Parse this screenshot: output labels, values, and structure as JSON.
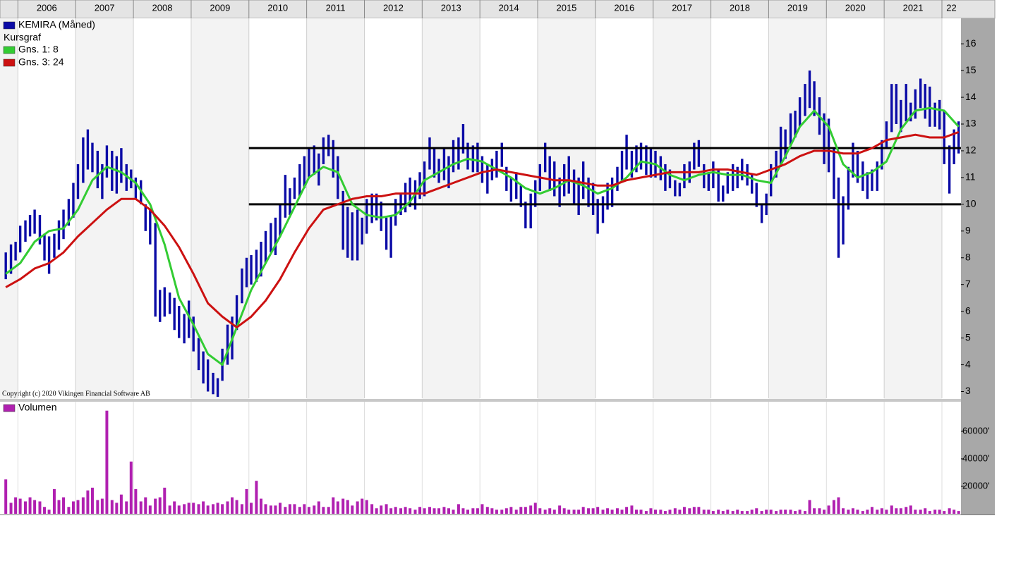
{
  "chart_data": {
    "type": "ohlc",
    "legend_note": "Kursgraf",
    "copyright": "Copyright (c) 2020 Vikingen Financial Software AB",
    "xlim": [
      2005.69,
      2022.33
    ],
    "xticks": [
      2006,
      2007,
      2008,
      2009,
      2010,
      2011,
      2012,
      2013,
      2014,
      2015,
      2016,
      2017,
      2018,
      2019,
      2020,
      2021,
      {
        "value": 2022,
        "label": "22"
      }
    ],
    "ylim": [
      2.75,
      16.9
    ],
    "yticks": [
      3,
      4,
      5,
      6,
      7,
      8,
      9,
      10,
      11,
      12,
      13,
      14,
      15,
      16
    ],
    "y2lim": [
      0,
      81500
    ],
    "y2ticks": [
      {
        "value": 20000,
        "label": "20000'"
      },
      {
        "value": 40000,
        "label": "40000'"
      },
      {
        "value": 60000,
        "label": "60000'"
      }
    ],
    "grid": true,
    "hlines": [
      {
        "value": 12.1,
        "from": 2010.0
      },
      {
        "value": 10.0,
        "from": 2010.0
      }
    ],
    "x": [
      2005.79,
      2005.88,
      2005.96,
      2006.04,
      2006.13,
      2006.21,
      2006.29,
      2006.38,
      2006.46,
      2006.54,
      2006.63,
      2006.71,
      2006.79,
      2006.88,
      2006.96,
      2007.04,
      2007.13,
      2007.21,
      2007.29,
      2007.38,
      2007.46,
      2007.54,
      2007.63,
      2007.71,
      2007.79,
      2007.88,
      2007.96,
      2008.04,
      2008.13,
      2008.21,
      2008.29,
      2008.38,
      2008.46,
      2008.54,
      2008.63,
      2008.71,
      2008.79,
      2008.88,
      2008.96,
      2009.04,
      2009.13,
      2009.21,
      2009.29,
      2009.38,
      2009.46,
      2009.54,
      2009.63,
      2009.71,
      2009.79,
      2009.88,
      2009.96,
      2010.04,
      2010.13,
      2010.21,
      2010.29,
      2010.38,
      2010.46,
      2010.54,
      2010.63,
      2010.71,
      2010.79,
      2010.88,
      2010.96,
      2011.04,
      2011.13,
      2011.21,
      2011.29,
      2011.38,
      2011.46,
      2011.54,
      2011.63,
      2011.71,
      2011.79,
      2011.88,
      2011.96,
      2012.04,
      2012.13,
      2012.21,
      2012.29,
      2012.38,
      2012.46,
      2012.54,
      2012.63,
      2012.71,
      2012.79,
      2012.88,
      2012.96,
      2013.04,
      2013.13,
      2013.21,
      2013.29,
      2013.38,
      2013.46,
      2013.54,
      2013.63,
      2013.71,
      2013.79,
      2013.88,
      2013.96,
      2014.04,
      2014.13,
      2014.21,
      2014.29,
      2014.38,
      2014.46,
      2014.54,
      2014.63,
      2014.71,
      2014.79,
      2014.88,
      2014.96,
      2015.04,
      2015.13,
      2015.21,
      2015.29,
      2015.38,
      2015.46,
      2015.54,
      2015.63,
      2015.71,
      2015.79,
      2015.88,
      2015.96,
      2016.04,
      2016.13,
      2016.21,
      2016.29,
      2016.38,
      2016.46,
      2016.54,
      2016.63,
      2016.71,
      2016.79,
      2016.88,
      2016.96,
      2017.04,
      2017.13,
      2017.21,
      2017.29,
      2017.38,
      2017.46,
      2017.54,
      2017.63,
      2017.71,
      2017.79,
      2017.88,
      2017.96,
      2018.04,
      2018.13,
      2018.21,
      2018.29,
      2018.38,
      2018.46,
      2018.54,
      2018.63,
      2018.71,
      2018.79,
      2018.88,
      2018.96,
      2019.04,
      2019.13,
      2019.21,
      2019.29,
      2019.38,
      2019.46,
      2019.54,
      2019.63,
      2019.71,
      2019.79,
      2019.88,
      2019.96,
      2020.04,
      2020.13,
      2020.21,
      2020.29,
      2020.38,
      2020.46,
      2020.54,
      2020.63,
      2020.71,
      2020.79,
      2020.88,
      2020.96,
      2021.04,
      2021.13,
      2021.21,
      2021.29,
      2021.38,
      2021.46,
      2021.54,
      2021.63,
      2021.71,
      2021.79,
      2021.88,
      2021.96,
      2022.04,
      2022.13,
      2022.21,
      2022.29
    ],
    "series": [
      {
        "name": "KEMIRA (Måned)",
        "color": "#0b0ba6",
        "high": [
          8.2,
          8.5,
          8.6,
          9.2,
          9.4,
          9.6,
          9.8,
          9.6,
          8.9,
          8.8,
          8.9,
          9.4,
          9.8,
          10.2,
          10.8,
          11.5,
          12.5,
          12.8,
          12.3,
          12.0,
          11.5,
          12.2,
          12.0,
          11.8,
          12.1,
          11.5,
          11.3,
          11.0,
          10.9,
          10.0,
          9.8,
          9.3,
          6.8,
          6.9,
          6.7,
          6.5,
          6.2,
          5.9,
          6.4,
          5.8,
          5.0,
          4.5,
          4.2,
          3.7,
          3.5,
          4.6,
          5.5,
          5.8,
          6.6,
          7.6,
          8.0,
          8.1,
          8.3,
          8.6,
          9.0,
          9.3,
          9.5,
          10.0,
          11.1,
          10.6,
          11.0,
          11.5,
          11.8,
          12.1,
          12.2,
          11.9,
          12.5,
          12.6,
          12.4,
          11.8,
          10.5,
          9.9,
          9.7,
          9.8,
          9.5,
          10.2,
          10.4,
          10.4,
          10.1,
          9.5,
          9.6,
          10.2,
          10.4,
          10.8,
          11.0,
          10.9,
          11.2,
          11.6,
          12.5,
          12.1,
          11.7,
          12.1,
          11.8,
          12.4,
          12.5,
          13.0,
          12.3,
          12.2,
          12.3,
          11.8,
          11.5,
          11.7,
          12.0,
          12.3,
          11.4,
          11.0,
          11.2,
          10.7,
          10.1,
          10.4,
          10.9,
          11.5,
          12.3,
          11.8,
          11.6,
          11.0,
          11.5,
          11.8,
          11.3,
          11.0,
          11.6,
          11.0,
          10.8,
          10.2,
          10.3,
          10.8,
          11.0,
          11.4,
          12.0,
          12.6,
          12.0,
          12.2,
          12.3,
          12.2,
          12.1,
          12.0,
          11.8,
          11.5,
          11.3,
          10.9,
          10.8,
          11.5,
          11.6,
          12.3,
          12.4,
          11.5,
          11.2,
          11.6,
          11.3,
          10.7,
          11.2,
          11.5,
          11.4,
          11.7,
          11.5,
          11.1,
          10.8,
          10.0,
          10.4,
          11.5,
          12.0,
          12.9,
          12.8,
          13.4,
          13.5,
          14.0,
          14.5,
          15.0,
          14.6,
          14.0,
          13.4,
          13.2,
          12.1,
          11.0,
          10.3,
          11.4,
          12.3,
          12.0,
          11.6,
          11.2,
          11.3,
          11.6,
          12.4,
          13.1,
          14.5,
          14.5,
          13.9,
          14.5,
          13.8,
          14.3,
          14.7,
          14.5,
          14.4,
          13.8,
          13.9,
          13.5,
          12.2,
          12.8,
          13.1
        ],
        "low": [
          7.2,
          7.4,
          7.9,
          8.2,
          8.6,
          8.8,
          8.9,
          8.5,
          7.9,
          7.4,
          8.0,
          8.3,
          8.7,
          9.2,
          9.5,
          10.2,
          10.8,
          11.3,
          11.2,
          10.6,
          10.2,
          11.0,
          10.5,
          10.4,
          10.8,
          10.5,
          10.6,
          10.2,
          10.0,
          9.0,
          8.5,
          5.8,
          5.6,
          5.8,
          5.9,
          5.3,
          5.0,
          4.8,
          5.0,
          4.5,
          3.8,
          3.3,
          3.0,
          2.9,
          2.8,
          3.4,
          4.0,
          4.2,
          5.3,
          6.3,
          6.9,
          7.0,
          7.1,
          7.3,
          7.8,
          8.2,
          8.1,
          8.8,
          9.5,
          9.6,
          10.2,
          10.3,
          10.6,
          11.0,
          11.1,
          10.7,
          11.5,
          11.8,
          11.0,
          10.2,
          8.3,
          8.0,
          7.9,
          7.9,
          8.5,
          8.9,
          9.3,
          9.4,
          9.0,
          8.3,
          8.0,
          9.2,
          9.6,
          9.7,
          9.9,
          9.8,
          10.2,
          10.3,
          11.3,
          11.0,
          10.8,
          10.9,
          10.6,
          11.2,
          11.3,
          11.9,
          11.3,
          11.2,
          11.2,
          10.8,
          10.4,
          10.9,
          11.0,
          11.4,
          10.5,
          10.1,
          10.2,
          9.9,
          9.1,
          9.1,
          9.9,
          10.5,
          11.2,
          10.5,
          10.3,
          9.9,
          10.3,
          10.4,
          10.0,
          9.6,
          10.2,
          9.9,
          9.6,
          8.9,
          9.3,
          9.8,
          9.9,
          10.5,
          10.9,
          11.3,
          11.0,
          11.2,
          11.3,
          11.1,
          11.0,
          11.0,
          10.9,
          10.5,
          10.6,
          10.3,
          10.3,
          10.6,
          10.8,
          11.3,
          11.4,
          10.6,
          10.5,
          10.6,
          10.1,
          10.1,
          10.4,
          10.5,
          10.6,
          10.9,
          10.7,
          10.4,
          9.9,
          9.3,
          9.6,
          10.3,
          11.0,
          11.4,
          11.7,
          12.2,
          12.5,
          12.9,
          13.3,
          13.6,
          13.3,
          12.6,
          11.5,
          11.2,
          10.2,
          8.0,
          8.5,
          9.8,
          11.0,
          10.8,
          10.5,
          10.2,
          10.5,
          10.5,
          11.3,
          12.1,
          12.7,
          13.0,
          12.7,
          13.1,
          13.1,
          13.2,
          13.6,
          13.2,
          12.9,
          12.9,
          12.8,
          11.5,
          10.4,
          11.5,
          11.9
        ]
      },
      {
        "name": "Gns. 1: 8",
        "color": "#33cc33",
        "x": [
          2005.79,
          2006.04,
          2006.29,
          2006.54,
          2006.79,
          2007.04,
          2007.29,
          2007.54,
          2007.79,
          2008.04,
          2008.29,
          2008.54,
          2008.79,
          2009.04,
          2009.29,
          2009.54,
          2009.79,
          2010.04,
          2010.29,
          2010.54,
          2010.79,
          2011.04,
          2011.29,
          2011.54,
          2011.79,
          2012.04,
          2012.29,
          2012.54,
          2012.79,
          2013.04,
          2013.29,
          2013.54,
          2013.79,
          2014.04,
          2014.29,
          2014.54,
          2014.79,
          2015.04,
          2015.29,
          2015.54,
          2015.79,
          2016.04,
          2016.29,
          2016.54,
          2016.79,
          2017.04,
          2017.29,
          2017.54,
          2017.79,
          2018.04,
          2018.29,
          2018.54,
          2018.79,
          2019.04,
          2019.29,
          2019.54,
          2019.79,
          2020.04,
          2020.29,
          2020.54,
          2020.79,
          2021.04,
          2021.29,
          2021.54,
          2021.79,
          2022.04,
          2022.29
        ],
        "values": [
          7.4,
          7.8,
          8.6,
          9.0,
          9.1,
          9.8,
          10.9,
          11.4,
          11.2,
          10.8,
          10.0,
          8.5,
          6.5,
          5.5,
          4.4,
          4.0,
          5.4,
          6.8,
          7.8,
          8.8,
          9.9,
          11.0,
          11.4,
          11.2,
          10.0,
          9.6,
          9.5,
          9.6,
          10.1,
          10.9,
          11.2,
          11.5,
          11.7,
          11.6,
          11.3,
          11.0,
          10.6,
          10.4,
          10.6,
          10.9,
          10.7,
          10.4,
          10.6,
          11.0,
          11.6,
          11.5,
          11.1,
          10.9,
          11.1,
          11.2,
          11.1,
          11.1,
          10.9,
          10.8,
          11.8,
          12.9,
          13.5,
          12.9,
          11.5,
          11.0,
          11.2,
          11.6,
          12.8,
          13.5,
          13.6,
          13.5,
          12.9
        ]
      },
      {
        "name": "Gns. 3: 24",
        "color": "#cc1111",
        "x": [
          2005.79,
          2006.04,
          2006.29,
          2006.54,
          2006.79,
          2007.04,
          2007.29,
          2007.54,
          2007.79,
          2008.04,
          2008.29,
          2008.54,
          2008.79,
          2009.04,
          2009.29,
          2009.54,
          2009.79,
          2010.04,
          2010.29,
          2010.54,
          2010.79,
          2011.04,
          2011.29,
          2011.54,
          2011.79,
          2012.04,
          2012.29,
          2012.54,
          2012.79,
          2013.04,
          2013.29,
          2013.54,
          2013.79,
          2014.04,
          2014.29,
          2014.54,
          2014.79,
          2015.04,
          2015.29,
          2015.54,
          2015.79,
          2016.04,
          2016.29,
          2016.54,
          2016.79,
          2017.04,
          2017.29,
          2017.54,
          2017.79,
          2018.04,
          2018.29,
          2018.54,
          2018.79,
          2019.04,
          2019.29,
          2019.54,
          2019.79,
          2020.04,
          2020.29,
          2020.54,
          2020.79,
          2021.04,
          2021.29,
          2021.54,
          2021.79,
          2022.04,
          2022.29
        ],
        "values": [
          6.9,
          7.2,
          7.6,
          7.8,
          8.2,
          8.8,
          9.3,
          9.8,
          10.2,
          10.2,
          9.8,
          9.2,
          8.4,
          7.4,
          6.3,
          5.8,
          5.4,
          5.8,
          6.4,
          7.2,
          8.2,
          9.1,
          9.8,
          10.0,
          10.2,
          10.3,
          10.3,
          10.4,
          10.4,
          10.4,
          10.6,
          10.8,
          11.0,
          11.2,
          11.3,
          11.2,
          11.1,
          11.0,
          10.9,
          10.9,
          10.8,
          10.7,
          10.7,
          10.9,
          11.0,
          11.1,
          11.2,
          11.2,
          11.2,
          11.3,
          11.3,
          11.2,
          11.1,
          11.3,
          11.5,
          11.8,
          12.0,
          12.0,
          11.9,
          11.9,
          12.1,
          12.4,
          12.5,
          12.6,
          12.5,
          12.5,
          12.7
        ]
      },
      {
        "name": "Volumen",
        "color": "#b020b0",
        "axis": "y2",
        "values": [
          25000,
          8000,
          12000,
          11000,
          9000,
          12000,
          10000,
          9000,
          5000,
          3000,
          18000,
          10000,
          12000,
          5000,
          9000,
          10000,
          12000,
          17000,
          19000,
          10000,
          11000,
          75000,
          10000,
          8000,
          14000,
          9000,
          38000,
          18000,
          9000,
          12000,
          6000,
          11000,
          12000,
          19000,
          6000,
          9000,
          6000,
          7000,
          8000,
          8000,
          7000,
          9000,
          6000,
          7000,
          8000,
          7000,
          9000,
          12000,
          10000,
          7000,
          18000,
          8000,
          24000,
          11000,
          7000,
          6000,
          6000,
          8000,
          5000,
          7000,
          7000,
          5000,
          7000,
          5000,
          6000,
          9000,
          5000,
          5000,
          12000,
          9000,
          11000,
          10000,
          6000,
          9000,
          11000,
          10000,
          7000,
          4000,
          6000,
          7000,
          4000,
          5000,
          4000,
          5000,
          4000,
          3000,
          5000,
          4000,
          5000,
          4000,
          4000,
          5000,
          4000,
          3000,
          7000,
          4000,
          3000,
          4000,
          4000,
          7000,
          5000,
          4000,
          3000,
          3000,
          4000,
          5000,
          3000,
          5000,
          5000,
          6000,
          8000,
          4000,
          3000,
          4000,
          3000,
          6000,
          4000,
          3000,
          3000,
          3000,
          5000,
          4000,
          4000,
          5000,
          3000,
          4000,
          3000,
          4000,
          3000,
          5000,
          6000,
          3000,
          3000,
          2000,
          4000,
          3000,
          3000,
          2000,
          3000,
          4000,
          3000,
          5000,
          4000,
          5000,
          5000,
          3000,
          3000,
          2000,
          3000,
          2000,
          3000,
          2000,
          3000,
          2000,
          2000,
          3000,
          4000,
          2000,
          3000,
          3000,
          2000,
          3000,
          3000,
          3000,
          2000,
          3000,
          2000,
          10000,
          4000,
          4000,
          3000,
          6000,
          10000,
          12000,
          4000,
          3000,
          4000,
          3000,
          2000,
          3000,
          5000,
          3000,
          4000,
          3000,
          6000,
          4000,
          4000,
          5000,
          6000,
          3000,
          3000,
          4000,
          2000,
          3000,
          3000,
          2000,
          4000,
          3000,
          2000
        ]
      }
    ]
  }
}
